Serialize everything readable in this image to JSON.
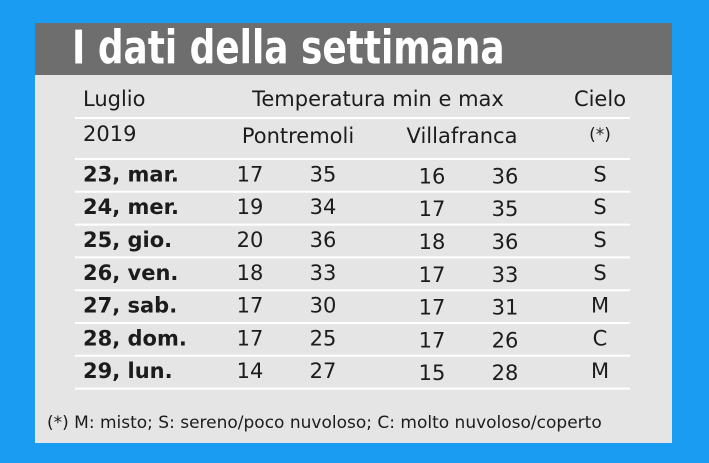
{
  "header": {
    "title": "I dati della settimana",
    "month": "Luglio",
    "year": "2019",
    "temperature": "Temperatura min e max",
    "sky": "Cielo",
    "sky_note": "(*)",
    "places": [
      "Pontremoli",
      "Villafranca"
    ]
  },
  "table": {
    "rows": [
      [
        "23, mar.",
        17,
        35,
        16,
        36,
        "S"
      ],
      [
        "24, mer.",
        19,
        34,
        17,
        35,
        "S"
      ],
      [
        "25, gio.",
        20,
        36,
        18,
        36,
        "S"
      ],
      [
        "26, ven.",
        18,
        33,
        17,
        33,
        "S"
      ],
      [
        "27, sab.",
        17,
        30,
        17,
        31,
        "M"
      ],
      [
        "28, dom.",
        17,
        25,
        17,
        26,
        "C"
      ],
      [
        "29, lun.",
        14,
        27,
        15,
        28,
        "M"
      ]
    ]
  },
  "footnote": "(*) M: misto; S: sereno/poco nuvoloso; C: molto nuvoloso/coperto"
}
